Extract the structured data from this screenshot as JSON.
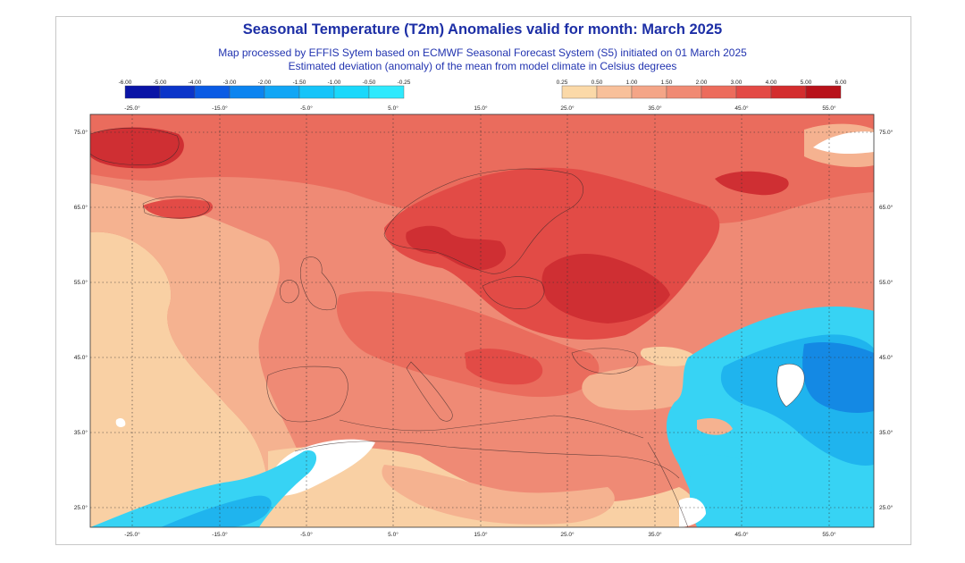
{
  "header": {
    "title": "Seasonal Temperature (T2m) Anomalies valid for month: March 2025",
    "subtitle_1": "Map processed by EFFIS Sytem based on ECMWF Seasonal Forecast System (S5) initiated on 01 March 2025",
    "subtitle_2": "Estimated deviation (anomaly) of the mean from model climate in Celsius degrees"
  },
  "legend_negative": {
    "labels": [
      "-6.00",
      "-5.00",
      "-4.00",
      "-3.00",
      "-2.00",
      "-1.50",
      "-1.00",
      "-0.50",
      "-0.25"
    ],
    "colors": [
      "#0a14a6",
      "#0b35c9",
      "#0a5be4",
      "#0c84f0",
      "#12a6f5",
      "#16c4f9",
      "#1ad8fb",
      "#2fe9fd"
    ]
  },
  "legend_positive": {
    "labels": [
      "0.25",
      "0.50",
      "1.00",
      "1.50",
      "2.00",
      "3.00",
      "4.00",
      "5.00",
      "6.00"
    ],
    "colors": [
      "#fbd9a8",
      "#f8c09a",
      "#f4a587",
      "#f08a73",
      "#ec6c5c",
      "#e34a45",
      "#d32d2e",
      "#b8121a"
    ]
  },
  "axes": {
    "longitude_labels": [
      "-25.0°",
      "-15.0°",
      "-5.0°",
      "5.0°",
      "15.0°",
      "25.0°",
      "35.0°",
      "45.0°",
      "55.0°"
    ],
    "latitude_labels": [
      "75.0°",
      "65.0°",
      "55.0°",
      "45.0°",
      "35.0°",
      "25.0°"
    ]
  },
  "map": {
    "base_color": "#ef8a75",
    "region_colors": {
      "below_zero_light": "#37d3f4",
      "below_zero_mid": "#1fb4ee",
      "below_zero_strong": "#1489e4",
      "near_zero": "#ffffff",
      "weak_warm": "#f9d0a4",
      "light_warm": "#f5b290",
      "warm": "#ef8a75",
      "warmer": "#ea6c5d",
      "hot": "#e24b46",
      "very_hot": "#cf2f33"
    }
  }
}
